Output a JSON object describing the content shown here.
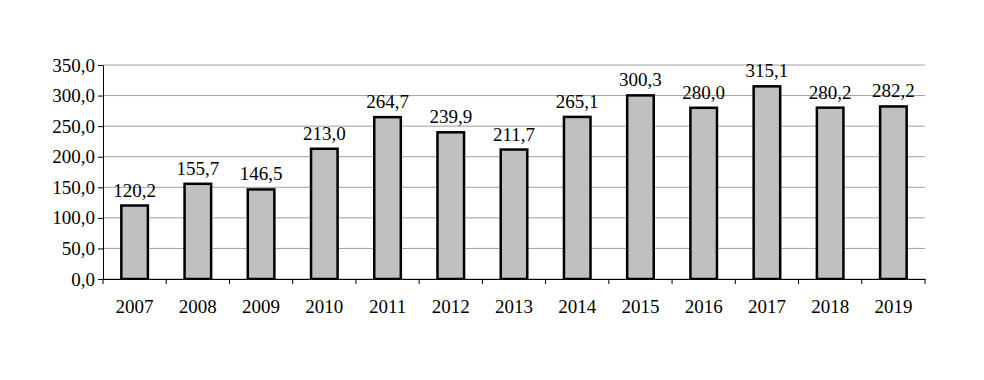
{
  "chart_data": {
    "type": "bar",
    "categories": [
      "2007",
      "2008",
      "2009",
      "2010",
      "2011",
      "2012",
      "2013",
      "2014",
      "2015",
      "2016",
      "2017",
      "2018",
      "2019"
    ],
    "values": [
      120.2,
      155.7,
      146.5,
      213.0,
      264.7,
      239.9,
      211.7,
      265.1,
      300.3,
      280.0,
      315.1,
      280.2,
      282.2
    ],
    "value_labels": [
      "120,2",
      "155,7",
      "146,5",
      "213,0",
      "264,7",
      "239,9",
      "211,7",
      "265,1",
      "300,3",
      "280,0",
      "315,1",
      "280,2",
      "282,2"
    ],
    "color": "#c0c0c0",
    "ylim": [
      0,
      350
    ],
    "yticks": [
      {
        "value": 0,
        "label": "0,0"
      },
      {
        "value": 50,
        "label": "50,0"
      },
      {
        "value": 100,
        "label": "100,0"
      },
      {
        "value": 150,
        "label": "150,0"
      },
      {
        "value": 200,
        "label": "200,0"
      },
      {
        "value": 250,
        "label": "250,0"
      },
      {
        "value": 300,
        "label": "300,0"
      },
      {
        "value": 350,
        "label": "350,0"
      }
    ],
    "grid": true,
    "data_labels": true
  }
}
